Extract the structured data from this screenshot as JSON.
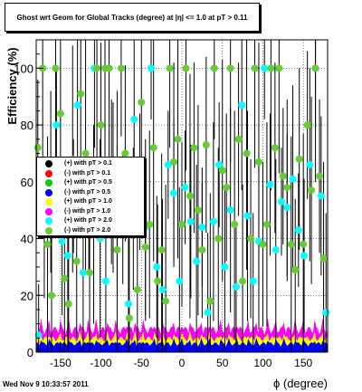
{
  "chart_data": {
    "type": "scatter",
    "title": "Ghost wrt Geom for Global Tracks (degree) at |η| <= 1.0 at pT > 0.11",
    "xlabel": "ϕ (degree)",
    "ylabel": "Efficiency (%)",
    "xlim": [
      -180,
      180
    ],
    "ylim": [
      0,
      110
    ],
    "xticks": [
      -150,
      -100,
      -50,
      0,
      50,
      100,
      150
    ],
    "yticks": [
      0,
      20,
      40,
      60,
      80,
      100
    ],
    "grid": true,
    "legend_position": "middle-left",
    "series": [
      {
        "name": "(+) with pT > 0.1",
        "color": "#000000",
        "style": "line",
        "points": []
      },
      {
        "name": "(-) with pT > 0.1",
        "color": "#ff0000",
        "style": "line",
        "points": []
      },
      {
        "name": "(+) with pT > 0.5",
        "color": "#00cc00",
        "style": "line",
        "points": []
      },
      {
        "name": "(-) with pT > 0.5",
        "color": "#0000ff",
        "style": "line",
        "points": []
      },
      {
        "name": "(+) with pT > 1.0",
        "color": "#ffff00",
        "style": "line",
        "points": []
      },
      {
        "name": "(-) with pT > 1.0",
        "color": "#ff00ff",
        "style": "line",
        "points": []
      },
      {
        "name": "(+) with pT > 2.0",
        "color": "#00ffff",
        "style": "marker",
        "points": [
          [
            -177,
            6
          ],
          [
            -170,
            44
          ],
          [
            -162,
            60
          ],
          [
            -155,
            80
          ],
          [
            -148,
            39
          ],
          [
            -141,
            34
          ],
          [
            -134,
            55
          ],
          [
            -129,
            87
          ],
          [
            -122,
            28
          ],
          [
            -115,
            48
          ],
          [
            -108,
            100
          ],
          [
            -101,
            40
          ],
          [
            -94,
            25
          ],
          [
            -87,
            60
          ],
          [
            -80,
            56
          ],
          [
            -73,
            47
          ],
          [
            -66,
            17
          ],
          [
            -59,
            82
          ],
          [
            -52,
            60
          ],
          [
            -45,
            44
          ],
          [
            -38,
            100
          ],
          [
            -31,
            30
          ],
          [
            -24,
            22
          ],
          [
            -17,
            66
          ],
          [
            -10,
            56
          ],
          [
            -3,
            25
          ],
          [
            4,
            58
          ],
          [
            11,
            46
          ],
          [
            18,
            32
          ],
          [
            25,
            44
          ],
          [
            32,
            14
          ],
          [
            39,
            46
          ],
          [
            46,
            66
          ],
          [
            53,
            30
          ],
          [
            60,
            50
          ],
          [
            67,
            23
          ],
          [
            74,
            87
          ],
          [
            81,
            48
          ],
          [
            88,
            25
          ],
          [
            95,
            39
          ],
          [
            102,
            100
          ],
          [
            109,
            59
          ],
          [
            116,
            36
          ],
          [
            123,
            53
          ],
          [
            130,
            51
          ],
          [
            137,
            61
          ],
          [
            144,
            43
          ],
          [
            151,
            34
          ],
          [
            158,
            66
          ],
          [
            165,
            100
          ],
          [
            172,
            55
          ],
          [
            178,
            14
          ]
        ]
      },
      {
        "name": "(-) with pT > 2.0",
        "color": "#66cc33",
        "style": "marker",
        "points": [
          [
            -178,
            72
          ],
          [
            -172,
            100
          ],
          [
            -166,
            38
          ],
          [
            -161,
            20
          ],
          [
            -156,
            100
          ],
          [
            -150,
            84
          ],
          [
            -145,
            26
          ],
          [
            -140,
            17
          ],
          [
            -135,
            68
          ],
          [
            -130,
            32
          ],
          [
            -125,
            91
          ],
          [
            -119,
            70
          ],
          [
            -114,
            28
          ],
          [
            -109,
            45
          ],
          [
            -105,
            100
          ],
          [
            -100,
            80
          ],
          [
            -95,
            100
          ],
          [
            -90,
            100
          ],
          [
            -85,
            58
          ],
          [
            -80,
            36
          ],
          [
            -75,
            100
          ],
          [
            -70,
            70
          ],
          [
            -65,
            12
          ],
          [
            -60,
            47
          ],
          [
            -55,
            22
          ],
          [
            -50,
            88
          ],
          [
            -45,
            37
          ],
          [
            -40,
            45
          ],
          [
            -35,
            72
          ],
          [
            -30,
            25
          ],
          [
            -25,
            36
          ],
          [
            -20,
            18
          ],
          [
            -15,
            100
          ],
          [
            -10,
            67
          ],
          [
            -5,
            75
          ],
          [
            0,
            45
          ],
          [
            5,
            100
          ],
          [
            10,
            55
          ],
          [
            15,
            72
          ],
          [
            20,
            50
          ],
          [
            25,
            36
          ],
          [
            30,
            73
          ],
          [
            35,
            18
          ],
          [
            40,
            100
          ],
          [
            45,
            40
          ],
          [
            50,
            64
          ],
          [
            55,
            58
          ],
          [
            60,
            100
          ],
          [
            65,
            45
          ],
          [
            70,
            75
          ],
          [
            75,
            25
          ],
          [
            80,
            70
          ],
          [
            85,
            40
          ],
          [
            90,
            100
          ],
          [
            95,
            67
          ],
          [
            100,
            38
          ],
          [
            105,
            45
          ],
          [
            110,
            100
          ],
          [
            115,
            72
          ],
          [
            120,
            100
          ],
          [
            125,
            62
          ],
          [
            130,
            58
          ],
          [
            135,
            38
          ],
          [
            140,
            29
          ],
          [
            145,
            68
          ],
          [
            150,
            38
          ],
          [
            155,
            80
          ],
          [
            160,
            57
          ],
          [
            165,
            100
          ],
          [
            170,
            62
          ],
          [
            175,
            33
          ]
        ]
      }
    ]
  },
  "footer": {
    "timestamp": "Wed Nov  9 10:33:57 2011"
  }
}
